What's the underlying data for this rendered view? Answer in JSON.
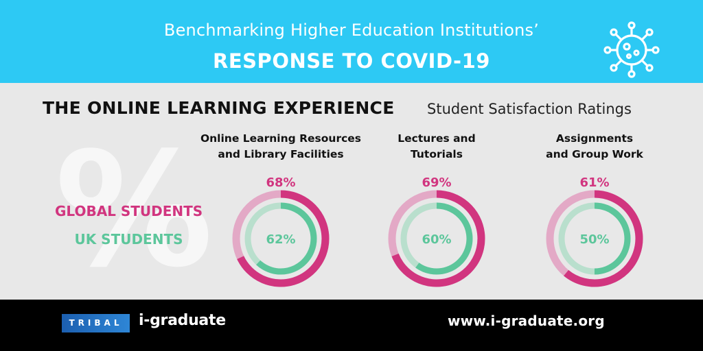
{
  "header": {
    "subtitle": "Benchmarking Higher Education Institutions’",
    "title": "RESPONSE TO COVID-19",
    "icon": "virus-icon"
  },
  "section": {
    "title": "THE ONLINE LEARNING EXPERIENCE",
    "subtitle": "Student Satisfaction Ratings",
    "decor_glyph": "%"
  },
  "colors": {
    "global": "#d1357f",
    "global_track": "#e3a9c6",
    "uk": "#5cc69b",
    "uk_track": "#b9dfcd"
  },
  "chart_data": {
    "type": "donut",
    "categories": [
      [
        "Online Learning Resources",
        "and Library Facilities"
      ],
      [
        "Lectures and",
        "Tutorials"
      ],
      [
        "Assignments",
        "and Group Work"
      ]
    ],
    "series": [
      {
        "name": "GLOBAL STUDENTS",
        "values": [
          68,
          69,
          61
        ],
        "labels": [
          "68%",
          "69%",
          "61%"
        ]
      },
      {
        "name": "UK STUDENTS",
        "values": [
          62,
          60,
          50
        ],
        "labels": [
          "62%",
          "60%",
          "50%"
        ]
      }
    ],
    "ylim": [
      0,
      100
    ]
  },
  "footer": {
    "tribal": "TRIBAL",
    "brand": "i-graduate",
    "url": "www.i-graduate.org"
  }
}
